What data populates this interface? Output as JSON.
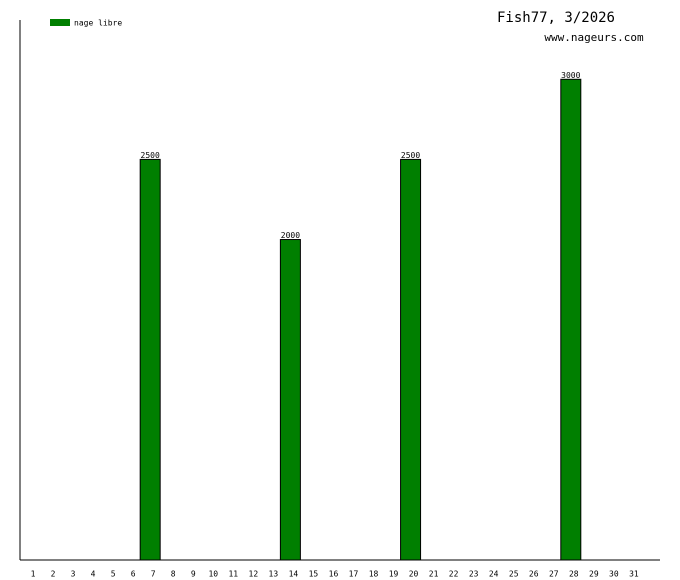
{
  "chart_data": {
    "type": "bar",
    "title": "Fish77, 3/2026",
    "subtitle": "www.nageurs.com",
    "categories": [
      "1",
      "2",
      "3",
      "4",
      "5",
      "6",
      "7",
      "8",
      "9",
      "10",
      "11",
      "12",
      "13",
      "14",
      "15",
      "16",
      "17",
      "18",
      "19",
      "20",
      "21",
      "22",
      "23",
      "24",
      "25",
      "26",
      "27",
      "28",
      "29",
      "30",
      "31"
    ],
    "series": [
      {
        "name": "nage libre",
        "color": "#007f00",
        "values": [
          null,
          null,
          null,
          null,
          null,
          null,
          2500,
          null,
          null,
          null,
          null,
          null,
          null,
          2000,
          null,
          null,
          null,
          null,
          null,
          2500,
          null,
          null,
          null,
          null,
          null,
          null,
          null,
          3000,
          null,
          null,
          null
        ]
      }
    ],
    "ylim": [
      0,
      3370
    ],
    "legend": "upper left"
  }
}
